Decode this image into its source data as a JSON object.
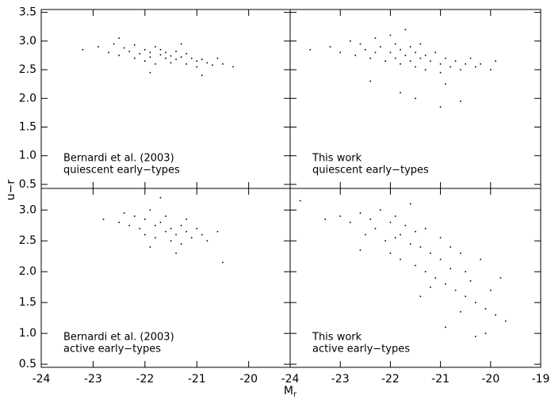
{
  "figure": {
    "xlabel": "M",
    "xlabel_sub": "r",
    "ylabel": "u−r"
  },
  "chart_data": [
    {
      "type": "scatter",
      "annotation": [
        "Bernardi et al. (2003)",
        "quiescent early−types"
      ],
      "color": "#000000",
      "xlim": [
        -24,
        -19.2
      ],
      "ylim": [
        0.43,
        3.55
      ],
      "xticks": [
        -24,
        -23,
        -22,
        -21,
        -20
      ],
      "yticks": [
        0.5,
        {
          "value": 1,
          "label": "1.0"
        },
        1.5,
        {
          "value": 2,
          "label": "2.0"
        },
        2.5,
        {
          "value": 3,
          "label": "3.0"
        },
        3.5
      ],
      "show_xticklabels": false,
      "show_yticklabels": true,
      "x": [
        -23.2,
        -22.9,
        -22.7,
        -22.6,
        -22.5,
        -22.4,
        -22.3,
        -22.2,
        -22.2,
        -22.1,
        -22.0,
        -22.0,
        -21.9,
        -21.9,
        -21.8,
        -21.8,
        -21.7,
        -21.7,
        -21.6,
        -21.6,
        -21.5,
        -21.5,
        -21.4,
        -21.4,
        -21.3,
        -21.2,
        -21.2,
        -21.1,
        -21.0,
        -21.0,
        -20.9,
        -20.8,
        -20.7,
        -20.6,
        -20.5,
        -20.3,
        -22.5,
        -21.9,
        -21.3,
        -20.9
      ],
      "y": [
        2.85,
        2.9,
        2.8,
        2.95,
        2.75,
        2.88,
        2.82,
        2.7,
        2.93,
        2.78,
        2.85,
        2.65,
        2.8,
        2.72,
        2.9,
        2.6,
        2.76,
        2.85,
        2.7,
        2.8,
        2.62,
        2.74,
        2.82,
        2.68,
        2.72,
        2.6,
        2.78,
        2.7,
        2.65,
        2.55,
        2.68,
        2.62,
        2.58,
        2.7,
        2.6,
        2.55,
        3.05,
        2.45,
        2.95,
        2.4
      ]
    },
    {
      "type": "scatter",
      "annotation": [
        "This work",
        "quiescent early−types"
      ],
      "color": "#000000",
      "xlim": [
        -24,
        -19
      ],
      "ylim": [
        0.43,
        3.55
      ],
      "xticks": [
        -24,
        -23,
        -22,
        -21,
        -20,
        -19
      ],
      "yticks": [
        0.5,
        1,
        1.5,
        2,
        2.5,
        3,
        3.5
      ],
      "show_xticklabels": false,
      "show_yticklabels": false,
      "x": [
        -23.6,
        -23.2,
        -23.0,
        -22.8,
        -22.7,
        -22.6,
        -22.5,
        -22.4,
        -22.3,
        -22.3,
        -22.2,
        -22.1,
        -22.0,
        -22.0,
        -21.9,
        -21.9,
        -21.8,
        -21.8,
        -21.7,
        -21.7,
        -21.6,
        -21.6,
        -21.5,
        -21.5,
        -21.4,
        -21.4,
        -21.3,
        -21.3,
        -21.2,
        -21.1,
        -21.0,
        -21.0,
        -20.9,
        -20.8,
        -20.7,
        -20.6,
        -20.5,
        -20.4,
        -20.3,
        -20.2,
        -20.0,
        -19.9,
        -21.5,
        -21.0,
        -20.6,
        -22.4,
        -21.8,
        -20.9
      ],
      "y": [
        2.85,
        2.9,
        2.8,
        3.0,
        2.75,
        2.95,
        2.85,
        2.7,
        3.05,
        2.8,
        2.9,
        2.65,
        2.8,
        3.1,
        2.7,
        2.95,
        2.6,
        2.85,
        2.75,
        3.2,
        2.65,
        2.9,
        2.55,
        2.8,
        2.7,
        2.95,
        2.5,
        2.75,
        2.65,
        2.8,
        2.6,
        2.45,
        2.7,
        2.55,
        2.65,
        2.5,
        2.6,
        2.7,
        2.55,
        2.6,
        2.5,
        2.65,
        2.0,
        1.85,
        1.95,
        2.3,
        2.1,
        2.25
      ]
    },
    {
      "type": "scatter",
      "annotation": [
        "Bernardi et al. (2003)",
        "active early−types"
      ],
      "color": "#000000",
      "xlim": [
        -24,
        -19.2
      ],
      "ylim": [
        0.45,
        3.35
      ],
      "xticks": [
        -24,
        -23,
        -22,
        -21,
        -20
      ],
      "yticks": [
        0.5,
        {
          "value": 1,
          "label": "1.0"
        },
        1.5,
        {
          "value": 2,
          "label": "2.0"
        },
        2.5,
        {
          "value": 3,
          "label": "3.0"
        }
      ],
      "show_xticklabels": true,
      "show_yticklabels": true,
      "x": [
        -22.8,
        -22.5,
        -22.3,
        -22.2,
        -22.1,
        -22.0,
        -22.0,
        -21.9,
        -21.8,
        -21.8,
        -21.7,
        -21.6,
        -21.6,
        -21.5,
        -21.5,
        -21.4,
        -21.3,
        -21.3,
        -21.2,
        -21.1,
        -21.0,
        -20.9,
        -20.8,
        -20.6,
        -21.9,
        -21.7,
        -21.4,
        -21.2,
        -22.4,
        -20.5
      ],
      "y": [
        2.85,
        2.8,
        2.75,
        2.9,
        2.7,
        2.85,
        2.6,
        3.0,
        2.75,
        2.55,
        2.8,
        2.65,
        2.9,
        2.5,
        2.7,
        2.6,
        2.75,
        2.45,
        2.65,
        2.55,
        2.7,
        2.6,
        2.5,
        2.65,
        2.4,
        3.2,
        2.3,
        2.85,
        2.95,
        2.15
      ]
    },
    {
      "type": "scatter",
      "annotation": [
        "This work",
        "active early−types"
      ],
      "color": "#000000",
      "xlim": [
        -24,
        -19
      ],
      "ylim": [
        0.45,
        3.35
      ],
      "xticks": [
        -24,
        -23,
        -22,
        -21,
        -20,
        -19
      ],
      "yticks": [
        0.5,
        1,
        1.5,
        2,
        2.5,
        3
      ],
      "show_xticklabels": true,
      "show_yticklabels": false,
      "x": [
        -23.8,
        -23.3,
        -23.0,
        -22.8,
        -22.6,
        -22.5,
        -22.4,
        -22.3,
        -22.2,
        -22.1,
        -22.0,
        -22.0,
        -21.9,
        -21.8,
        -21.8,
        -21.7,
        -21.6,
        -21.6,
        -21.5,
        -21.5,
        -21.4,
        -21.3,
        -21.3,
        -21.2,
        -21.1,
        -21.0,
        -21.0,
        -20.9,
        -20.8,
        -20.8,
        -20.7,
        -20.6,
        -20.5,
        -20.5,
        -20.4,
        -20.3,
        -20.2,
        -20.1,
        -20.0,
        -19.9,
        -19.8,
        -19.7,
        -21.9,
        -21.4,
        -20.9,
        -20.6,
        -20.3,
        -22.6,
        -21.2,
        -20.1
      ],
      "y": [
        3.15,
        2.85,
        2.9,
        2.8,
        2.95,
        2.6,
        2.85,
        2.7,
        3.0,
        2.5,
        2.8,
        2.3,
        2.9,
        2.6,
        2.2,
        2.75,
        2.45,
        3.1,
        2.1,
        2.65,
        2.4,
        2.0,
        2.7,
        2.3,
        1.9,
        2.55,
        2.2,
        1.8,
        2.4,
        2.05,
        1.7,
        2.3,
        1.6,
        2.0,
        1.85,
        1.5,
        2.2,
        1.4,
        1.7,
        1.3,
        1.9,
        1.2,
        2.55,
        1.6,
        1.1,
        1.35,
        0.95,
        2.35,
        1.75,
        1.0
      ]
    }
  ]
}
